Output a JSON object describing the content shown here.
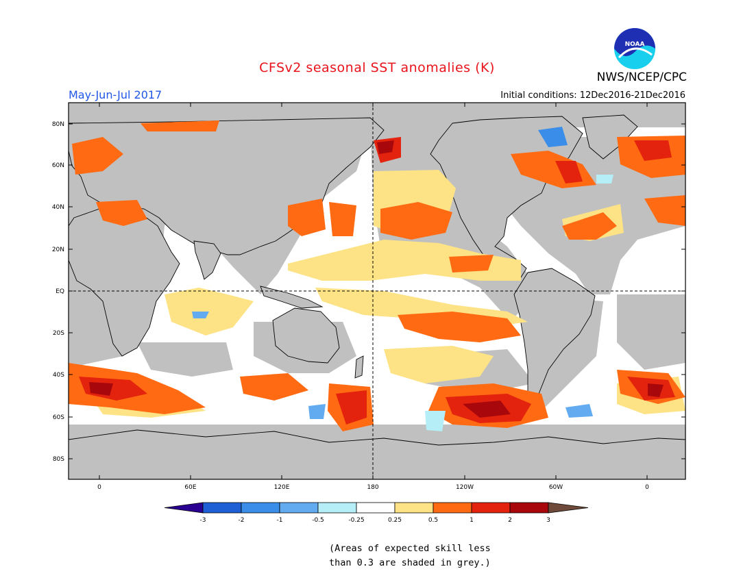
{
  "header": {
    "title": "CFSv2 seasonal SST anomalies (K)",
    "organization": "NWS/NCEP/CPC",
    "period": "May-Jun-Jul 2017",
    "initial_conditions": "Initial conditions: 12Dec2016-21Dec2016",
    "logo_text": "NOAA"
  },
  "map": {
    "lat_labels": [
      "80N",
      "60N",
      "40N",
      "20N",
      "EQ",
      "20S",
      "40S",
      "60S",
      "80S"
    ],
    "lon_labels": [
      "0",
      "60E",
      "120E",
      "180",
      "120W",
      "60W",
      "0"
    ],
    "mask_color": "#c0c0c0"
  },
  "colorbar": {
    "labels": [
      "-3",
      "-2",
      "-1",
      "-0.5",
      "-0.25",
      "0.25",
      "0.5",
      "1",
      "2",
      "3"
    ],
    "colors": [
      "#2a0093",
      "#1f5fd6",
      "#3a8de8",
      "#63abf0",
      "#b6eef8",
      "#ffffff",
      "#fde385",
      "#ff6a12",
      "#e3230d",
      "#a8080b",
      "#6f4a3a"
    ]
  },
  "note": {
    "line1": "(Areas of expected skill less",
    "line2": "than 0.3 are shaded in grey.)"
  }
}
